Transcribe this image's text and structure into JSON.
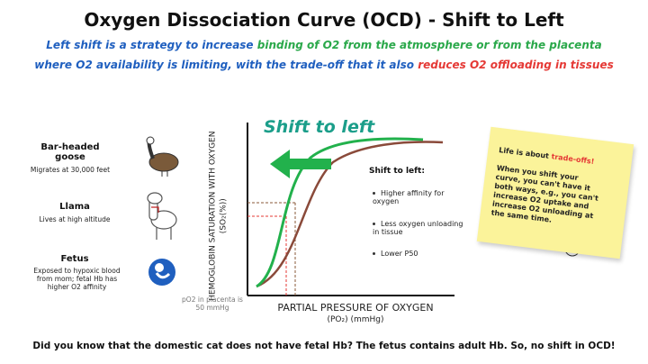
{
  "header": {
    "title": "Oxygen Dissociation Curve (OCD) - Shift to Left",
    "subtitle": [
      [
        {
          "text": "Left shift is a strategy to increase ",
          "color": "#1f5fbf"
        },
        {
          "text": "binding of O2 from the atmosphere or from the placenta",
          "color": "#2aa84a"
        }
      ],
      [
        {
          "text": "where O2 availability is limiting, with the trade-off that it also ",
          "color": "#1f5fbf"
        },
        {
          "text": "reduces O2 offloading in tissues",
          "color": "#e53935"
        }
      ]
    ]
  },
  "examples": [
    {
      "title": "Bar-headed goose",
      "note": "Migrates at 30,000 feet"
    },
    {
      "title": "Llama",
      "note": "Lives at high altitude"
    },
    {
      "title": "Fetus",
      "note": "Exposed to hypoxic blood from mom; fetal Hb has higher O2 affinity"
    }
  ],
  "graph": {
    "shift_label": "Shift to left",
    "y_axis": "HEMOGLOBIN SATURATION WITH OXYGEN (SO₂(%))",
    "x_axis": "PARTIAL PRESSURE OF OXYGEN",
    "x_axis_units": "(PO₂) (mmHg)",
    "annotation": "pO2 in placenta is 50 mmHg",
    "box_heading": "Shift to left:",
    "box_items": [
      "Higher affinity for oxygen",
      "Less oxygen unloading in tissue",
      "Lower P50"
    ]
  },
  "note": {
    "heading": [
      {
        "text": "Life is about ",
        "color": "#222222"
      },
      {
        "text": "trade-offs!",
        "color": "#e53935"
      }
    ],
    "body": "When you shift your curve, you can't have it both ways, e.g., you can't increase O2 uptake and increase O2 unloading at the same time."
  },
  "footer": "Did you know that the domestic cat does not have fetal Hb? The fetus contains adult Hb. So, no shift in OCD!"
}
